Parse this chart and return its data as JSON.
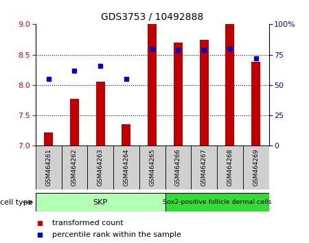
{
  "title": "GDS3753 / 10492888",
  "samples": [
    "GSM464261",
    "GSM464262",
    "GSM464263",
    "GSM464264",
    "GSM464265",
    "GSM464266",
    "GSM464267",
    "GSM464268",
    "GSM464269"
  ],
  "transformed_count": [
    7.22,
    7.77,
    8.05,
    7.35,
    9.0,
    8.7,
    8.75,
    9.0,
    8.38
  ],
  "percentile_rank": [
    55,
    62,
    66,
    55,
    80,
    79,
    79,
    80,
    72
  ],
  "ylim_left": [
    7,
    9
  ],
  "ylim_right": [
    0,
    100
  ],
  "yticks_left": [
    7,
    7.5,
    8,
    8.5,
    9
  ],
  "yticks_right": [
    0,
    25,
    50,
    75,
    100
  ],
  "ytick_labels_right": [
    "0",
    "25",
    "50",
    "75",
    "100%"
  ],
  "bar_color": "#c00000",
  "dot_color": "#0000cc",
  "bar_width": 0.35,
  "skp_count": 5,
  "sox2_count": 4,
  "skp_label": "SKP",
  "sox2_label": "Sox2-positive follicle dermal cells",
  "skp_color": "#b3ffb3",
  "sox2_color": "#33dd33",
  "cell_type_label": "cell type",
  "legend_bar_label": "transformed count",
  "legend_dot_label": "percentile rank within the sample",
  "tick_box_color": "#d0d0d0",
  "label_fontsize": 8,
  "tick_fontsize": 8,
  "sample_fontsize": 6.5,
  "title_fontsize": 10
}
